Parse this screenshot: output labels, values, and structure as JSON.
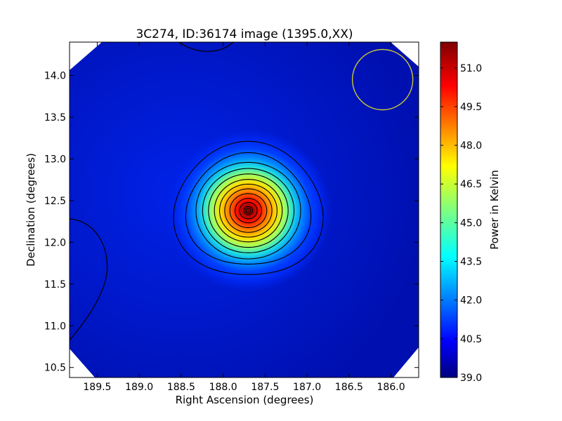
{
  "chart_data": {
    "type": "heatmap",
    "title": "3C274, ID:36174 image (1395.0,XX)",
    "xlabel": "Right Ascension (degrees)",
    "ylabel": "Declination (degrees)",
    "xlim": [
      189.83,
      185.67
    ],
    "ylim": [
      10.38,
      14.4
    ],
    "x_ticks": [
      "189.5",
      "189.0",
      "188.5",
      "188.0",
      "187.5",
      "187.0",
      "186.5",
      "186.0"
    ],
    "y_ticks": [
      "10.5",
      "11.0",
      "11.5",
      "12.0",
      "12.5",
      "13.0",
      "13.5",
      "14.0"
    ],
    "colormap": "jet",
    "colorbar": {
      "label": "Power in Kelvin",
      "min": 39.0,
      "max": 52.0,
      "ticks": [
        "39.0",
        "40.5",
        "42.0",
        "43.5",
        "45.0",
        "46.5",
        "48.0",
        "49.5",
        "51.0"
      ]
    },
    "source": {
      "ra": 187.7,
      "dec": 12.38,
      "peak_kelvin": 52.0
    },
    "background_kelvin": 40.3,
    "beam_marker": {
      "ra": 186.1,
      "dec": 13.95,
      "color": "#c8c832"
    },
    "grid": false
  }
}
